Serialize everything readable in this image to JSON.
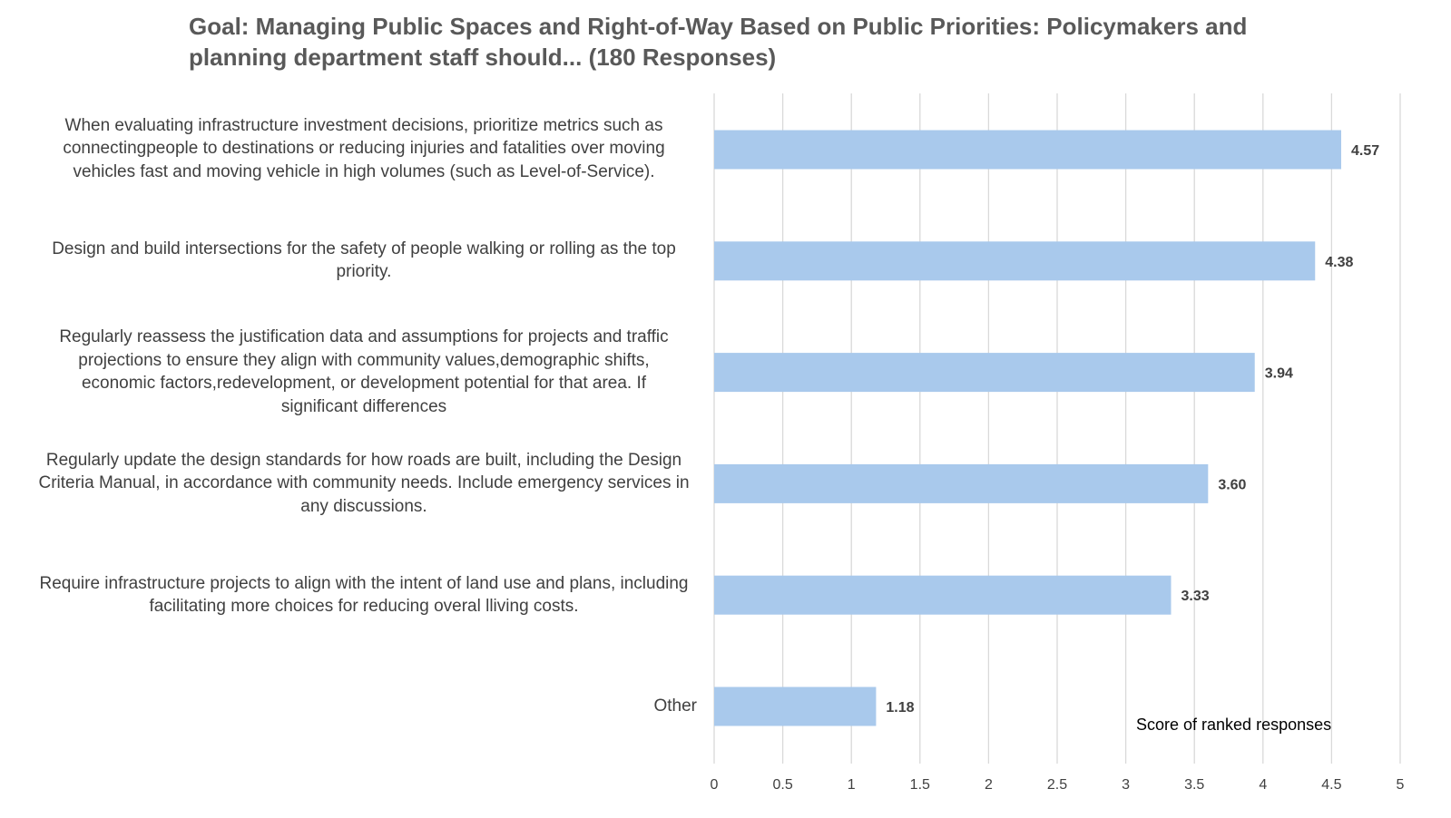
{
  "chart_data": {
    "type": "bar",
    "orientation": "horizontal",
    "title": "Goal: Managing Public Spaces and Right-of-Way Based on Public Priorities: Policymakers and planning department staff should... (180 Responses)",
    "categories": [
      "When evaluating infrastructure investment decisions, prioritize metrics such as connectingpeople to destinations or reducing injuries and fatalities over moving vehicles fast and moving vehicle in high volumes (such as Level-of-Service).",
      "Design and build intersections for the safety of people walking or rolling as the top priority.",
      "Regularly reassess the justification data and assumptions for projects and traffic projections to ensure they align with community values,demographic shifts, economic factors,redevelopment, or development potential for that area. If significant differences",
      "Regularly update the design standards for how roads are built, including the Design Criteria Manual, in accordance with community needs. Include emergency services in any discussions.",
      "Require infrastructure projects to align with the intent of land use and plans, including facilitating more choices for reducing overal lliving costs.",
      "Other"
    ],
    "values": [
      4.57,
      4.38,
      3.94,
      3.6,
      3.33,
      1.18
    ],
    "value_labels": [
      "4.57",
      "4.38",
      "3.94",
      "3.60",
      "3.33",
      "1.18"
    ],
    "xlabel": "Score of ranked responses",
    "ylabel": "",
    "xlim": [
      0,
      5
    ],
    "xticks": [
      "0",
      "0.5",
      "1",
      "1.5",
      "2",
      "2.5",
      "3",
      "3.5",
      "4",
      "4.5",
      "5"
    ],
    "grid": true,
    "bar_color": "#A9C9EC",
    "grid_color": "#D9D9D9",
    "text_color": "#404040",
    "title_color": "#595959"
  }
}
